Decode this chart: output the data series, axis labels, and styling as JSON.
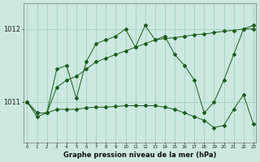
{
  "title": "Graphe pression niveau de la mer (hPa)",
  "bg_color": "#cce8e0",
  "grid_color": "#99ccbb",
  "line_color": "#1a5c1a",
  "xlim_min": -0.4,
  "xlim_max": 23.3,
  "ylim_min": 1010.45,
  "ylim_max": 1012.35,
  "yticks": [
    1011,
    1012
  ],
  "xticks": [
    0,
    1,
    2,
    3,
    4,
    5,
    6,
    7,
    8,
    9,
    10,
    11,
    12,
    13,
    14,
    15,
    16,
    17,
    18,
    19,
    20,
    21,
    22,
    23
  ],
  "hours": [
    0,
    1,
    2,
    3,
    4,
    5,
    6,
    7,
    8,
    9,
    10,
    11,
    12,
    13,
    14,
    15,
    16,
    17,
    18,
    19,
    20,
    21,
    22,
    23
  ],
  "series_upper": [
    1011.0,
    1010.8,
    1010.85,
    1011.45,
    1011.5,
    1011.05,
    1011.55,
    1011.8,
    1011.85,
    1011.9,
    1012.0,
    1011.75,
    1012.05,
    1011.85,
    1011.9,
    1011.65,
    1011.5,
    1011.3,
    1010.85,
    1011.0,
    1011.3,
    1011.65,
    1012.0,
    1012.05
  ],
  "series_mid": [
    1011.0,
    1010.85,
    1010.85,
    1011.2,
    1011.3,
    1011.35,
    1011.45,
    1011.55,
    1011.6,
    1011.65,
    1011.7,
    1011.75,
    1011.8,
    1011.85,
    1011.87,
    1011.88,
    1011.9,
    1011.92,
    1011.93,
    1011.95,
    1011.97,
    1011.98,
    1012.0,
    1012.0
  ],
  "series_lower": [
    1011.0,
    1010.85,
    1010.85,
    1010.9,
    1010.9,
    1010.9,
    1010.92,
    1010.93,
    1010.93,
    1010.94,
    1010.95,
    1010.95,
    1010.95,
    1010.95,
    1010.93,
    1010.9,
    1010.85,
    1010.8,
    1010.75,
    1010.65,
    1010.68,
    1010.9,
    1011.1,
    1010.7
  ]
}
